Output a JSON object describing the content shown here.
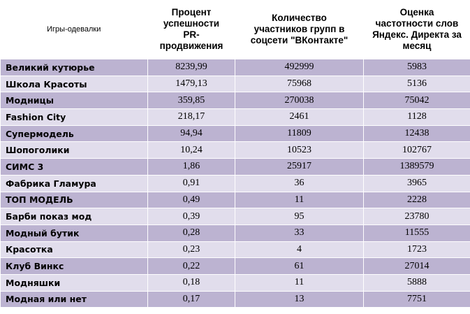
{
  "table": {
    "headers": [
      "Игры-одевалки",
      "Процент успешности PR-продвижения",
      "Количество участников групп в соцсети \"ВКонтакте\"",
      "Оценка частотности слов Яндекс. Директа за месяц"
    ],
    "header_lines": [
      [
        "Игры-одевалки"
      ],
      [
        "Процент",
        "успешности",
        "PR-",
        "продвижения"
      ],
      [
        "Количество",
        "участников групп в",
        "соцсети \"ВКонтакте\""
      ],
      [
        "Оценка",
        "частотности слов",
        "Яндекс. Директа за",
        "месяц"
      ]
    ],
    "rows": [
      {
        "name": "Великий кутюрье",
        "percent": "8239,99",
        "members": "492999",
        "frequency": "5983"
      },
      {
        "name": "Школа Красоты",
        "percent": "1479,13",
        "members": "75968",
        "frequency": "5136"
      },
      {
        "name": "Модницы",
        "percent": "359,85",
        "members": "270038",
        "frequency": "75042"
      },
      {
        "name": "Fashion City",
        "percent": "218,17",
        "members": "2461",
        "frequency": "1128"
      },
      {
        "name": "Супермодель",
        "percent": "94,94",
        "members": "11809",
        "frequency": "12438"
      },
      {
        "name": "Шопоголики",
        "percent": "10,24",
        "members": "10523",
        "frequency": "102767"
      },
      {
        "name": "СИМС 3",
        "percent": "1,86",
        "members": "25917",
        "frequency": "1389579"
      },
      {
        "name": " Фабрика Гламура",
        "percent": "0,91",
        "members": "36",
        "frequency": "3965"
      },
      {
        "name": "ТОП МОДЕЛЬ",
        "percent": "0,49",
        "members": "11",
        "frequency": "2228"
      },
      {
        "name": " Барби показ мод",
        "percent": "0,39",
        "members": "95",
        "frequency": "23780"
      },
      {
        "name": "Модный бутик",
        "percent": "0,28",
        "members": "33",
        "frequency": "11555"
      },
      {
        "name": "Красотка",
        "percent": "0,23",
        "members": "4",
        "frequency": "1723"
      },
      {
        "name": "Клуб Винкс",
        "percent": "0,22",
        "members": "61",
        "frequency": "27014"
      },
      {
        "name": "Модняшки",
        "percent": "0,18",
        "members": "11",
        "frequency": "5888"
      },
      {
        "name": "Модная или нет",
        "percent": "0,17",
        "members": "13",
        "frequency": "7751"
      }
    ]
  },
  "colors": {
    "row_dark": "#bcb3d1",
    "row_light": "#e1ddec"
  }
}
